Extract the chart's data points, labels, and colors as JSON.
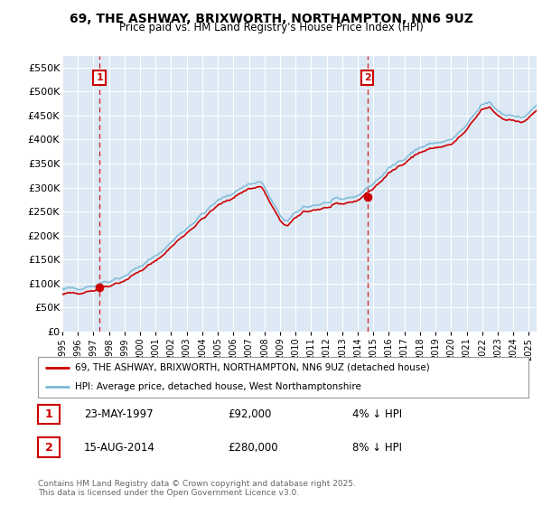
{
  "title": "69, THE ASHWAY, BRIXWORTH, NORTHAMPTON, NN6 9UZ",
  "subtitle": "Price paid vs. HM Land Registry's House Price Index (HPI)",
  "ylim": [
    0,
    575000
  ],
  "yticks": [
    0,
    50000,
    100000,
    150000,
    200000,
    250000,
    300000,
    350000,
    400000,
    450000,
    500000,
    550000
  ],
  "ytick_labels": [
    "£0",
    "£50K",
    "£100K",
    "£150K",
    "£200K",
    "£250K",
    "£300K",
    "£350K",
    "£400K",
    "£450K",
    "£500K",
    "£550K"
  ],
  "background_color": "#ffffff",
  "plot_bg_color": "#dce9f5",
  "grid_color": "#ffffff",
  "sale1_x": 1997.39,
  "sale1_y": 92000,
  "sale2_x": 2014.62,
  "sale2_y": 280000,
  "legend_line1": "69, THE ASHWAY, BRIXWORTH, NORTHAMPTON, NN6 9UZ (detached house)",
  "legend_line2": "HPI: Average price, detached house, West Northamptonshire",
  "footer": "Contains HM Land Registry data © Crown copyright and database right 2025.\nThis data is licensed under the Open Government Licence v3.0.",
  "line_red_color": "#cc0000",
  "line_blue_color": "#7ab8d4",
  "annotation_box_color": "#cc0000",
  "xlim_start": 1995.0,
  "xlim_end": 2025.5
}
